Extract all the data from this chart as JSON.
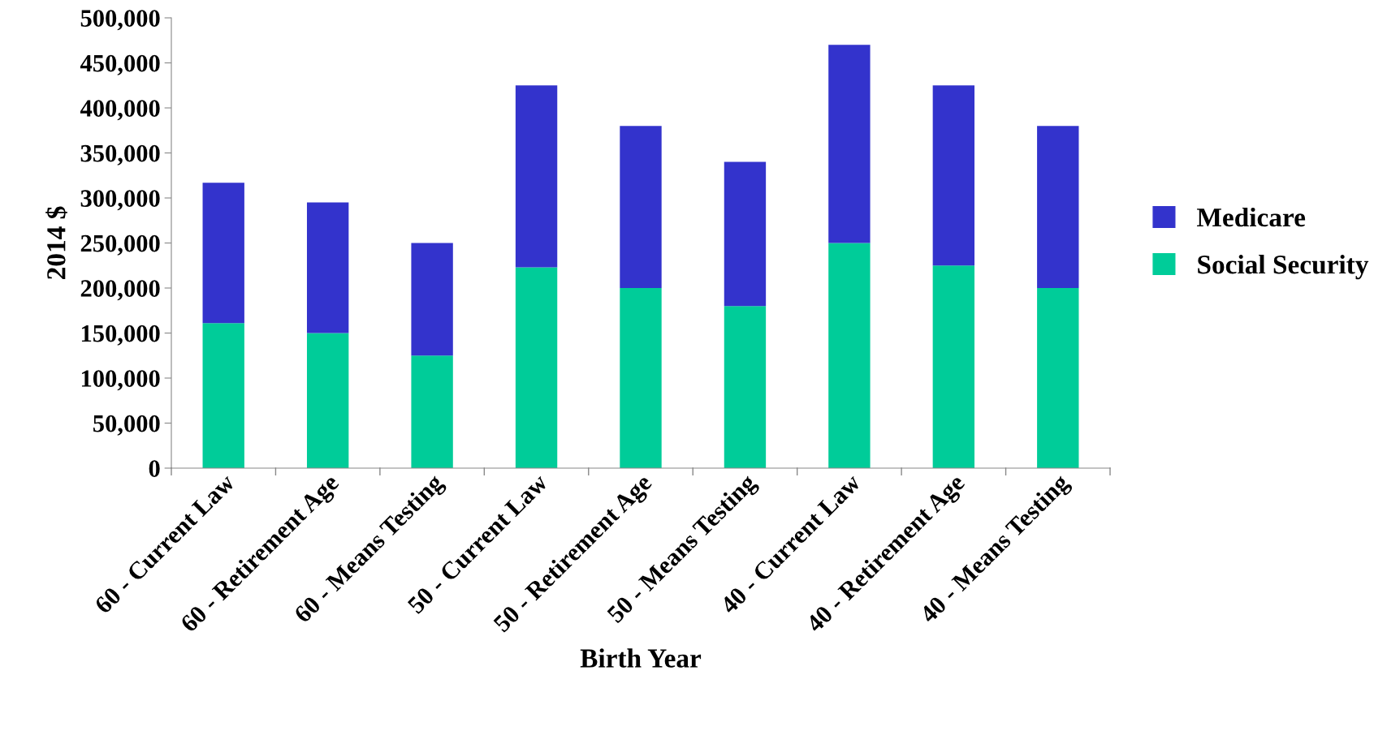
{
  "chart_data": {
    "type": "bar",
    "stacked": true,
    "xlabel": "Birth Year",
    "ylabel": "2014 $",
    "categories": [
      "60 - Current Law",
      "60 - Retirement Age",
      "60 - Means Testing",
      "50 - Current Law",
      "50 - Retirement Age",
      "50 - Means Testing",
      "40 - Current Law",
      "40 - Retirement Age",
      "40 - Means Testing"
    ],
    "series": [
      {
        "name": "Social Security",
        "color": "#00cc99",
        "values": [
          161000,
          150000,
          125000,
          223000,
          200000,
          180000,
          250000,
          225000,
          200000
        ]
      },
      {
        "name": "Medicare",
        "color": "#3333cc",
        "values": [
          156000,
          145000,
          125000,
          202000,
          180000,
          160000,
          220000,
          200000,
          180000
        ]
      }
    ],
    "ylim": [
      0,
      500000
    ],
    "yticks": [
      {
        "value": 0,
        "label": "0"
      },
      {
        "value": 50000,
        "label": "50,000"
      },
      {
        "value": 100000,
        "label": "100,000"
      },
      {
        "value": 150000,
        "label": "150,000"
      },
      {
        "value": 200000,
        "label": "200,000"
      },
      {
        "value": 250000,
        "label": "250,000"
      },
      {
        "value": 300000,
        "label": "300,000"
      },
      {
        "value": 350000,
        "label": "350,000"
      },
      {
        "value": 400000,
        "label": "400,000"
      },
      {
        "value": 450000,
        "label": "450,000"
      },
      {
        "value": 500000,
        "label": "500,000"
      }
    ],
    "grid": false,
    "legend": "right"
  }
}
